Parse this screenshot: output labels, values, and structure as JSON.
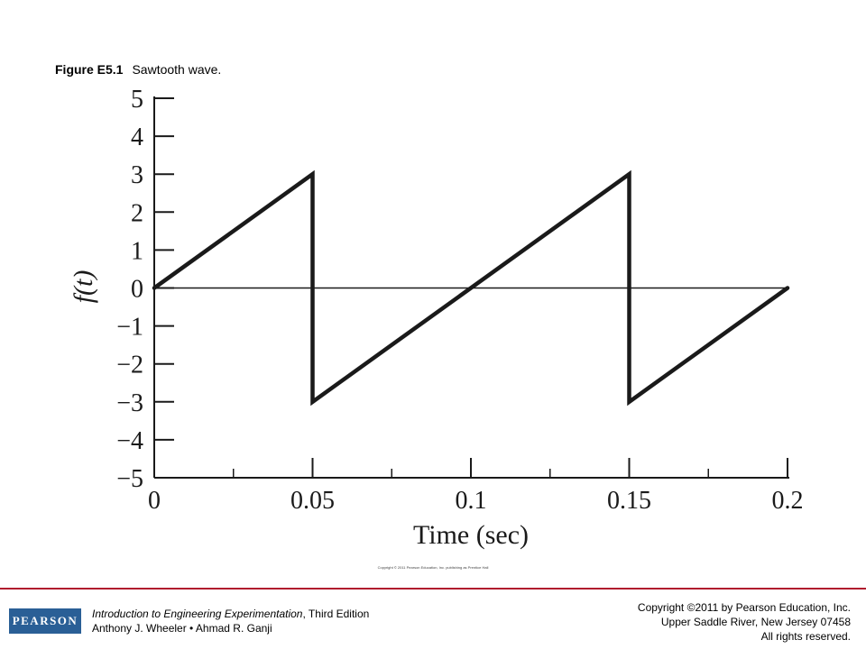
{
  "caption": {
    "number": "Figure E5.1",
    "text": "Sawtooth wave."
  },
  "chart_data": {
    "type": "line",
    "title": "",
    "xlabel": "Time (sec)",
    "ylabel": "f(t)",
    "xlim": [
      0,
      0.2
    ],
    "ylim": [
      -5,
      5
    ],
    "x_ticks": [
      "0",
      "0.05",
      "0.1",
      "0.15",
      "0.2"
    ],
    "x_tick_values": [
      0,
      0.05,
      0.1,
      0.15,
      0.2
    ],
    "x_minor_tick_values": [
      0.025,
      0.075,
      0.125,
      0.175
    ],
    "y_ticks": [
      "5",
      "4",
      "3",
      "2",
      "1",
      "0",
      "−1",
      "−2",
      "−3",
      "−4",
      "−5"
    ],
    "y_tick_values": [
      5,
      4,
      3,
      2,
      1,
      0,
      -1,
      -2,
      -3,
      -4,
      -5
    ],
    "grid": false,
    "reference_line_y": 0,
    "series": [
      {
        "x": [
          0,
          0.05,
          0.05,
          0.15,
          0.15,
          0.2
        ],
        "y": [
          0,
          3,
          -3,
          3,
          -3,
          0
        ]
      }
    ]
  },
  "credit_line": "Copyright © 2011 Pearson Education, Inc. publishing as Prentice Hall",
  "footer": {
    "logo_text": "PEARSON",
    "book_title": "Introduction to Engineering Experimentation",
    "book_edition": ", Third Edition",
    "authors": "Anthony J. Wheeler • Ahmad R. Ganji",
    "copyright_line1": "Copyright ©2011 by Pearson Education, Inc.",
    "copyright_line2": "Upper Saddle River, New Jersey 07458",
    "copyright_line3": "All rights reserved."
  },
  "colors": {
    "brand_blue": "#2a5f96",
    "rule_red": "#b01c2e",
    "line": "#1a1a1a"
  }
}
